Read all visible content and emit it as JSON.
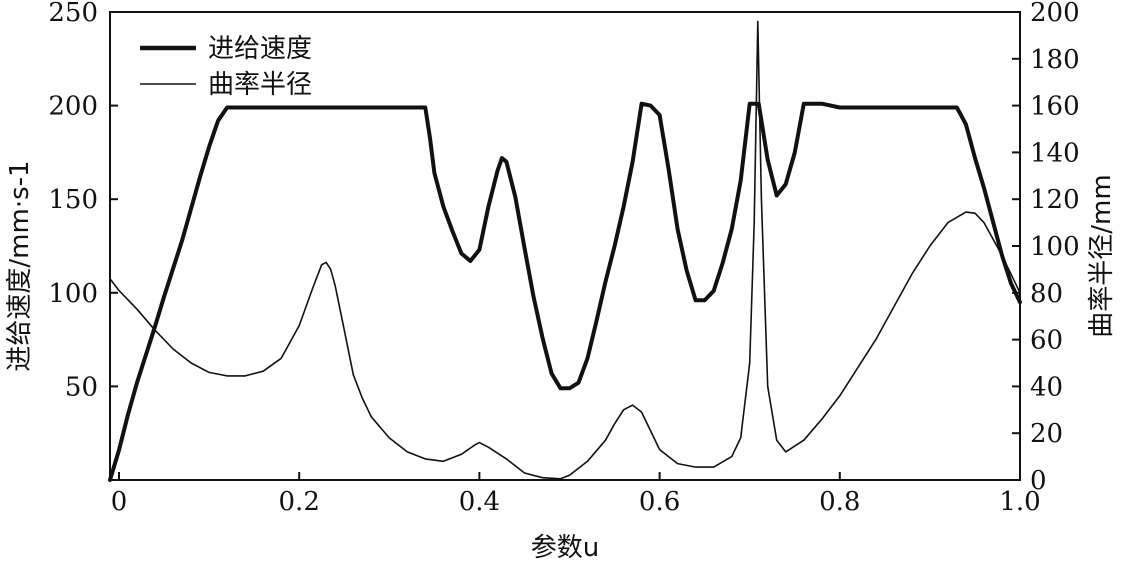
{
  "chart_data": {
    "type": "line",
    "xlabel": "参数u",
    "ylabel": "进给速度/mm·s-1",
    "y2label": "曲率半径/mm",
    "xlim": [
      -0.01,
      1.0
    ],
    "ylim": [
      0,
      250
    ],
    "y2lim": [
      0,
      200
    ],
    "x_ticks": [
      0,
      0.2,
      0.4,
      0.6,
      0.8,
      1.0
    ],
    "x_tick_labels": [
      "0",
      "0.2",
      "0.4",
      "0.6",
      "0.8",
      "1.0"
    ],
    "y_ticks": [
      50,
      100,
      150,
      200,
      250
    ],
    "y_tick_labels": [
      "50",
      "100",
      "150",
      "200",
      "250"
    ],
    "y2_ticks": [
      0,
      20,
      40,
      60,
      80,
      100,
      120,
      140,
      160,
      180,
      200
    ],
    "y2_tick_labels": [
      "0",
      "20",
      "40",
      "60",
      "80",
      "100",
      "120",
      "140",
      "160",
      "180",
      "200"
    ],
    "grid": false,
    "legend_position": "top-left",
    "series": [
      {
        "name": "进给速度",
        "axis": "left",
        "line_style": "thick",
        "color": "#111111",
        "points": [
          [
            -0.01,
            0
          ],
          [
            0.0,
            16
          ],
          [
            0.01,
            35
          ],
          [
            0.02,
            52
          ],
          [
            0.03,
            67
          ],
          [
            0.04,
            82
          ],
          [
            0.05,
            98
          ],
          [
            0.06,
            113
          ],
          [
            0.07,
            128
          ],
          [
            0.08,
            145
          ],
          [
            0.09,
            162
          ],
          [
            0.1,
            178
          ],
          [
            0.11,
            192
          ],
          [
            0.12,
            199
          ],
          [
            0.2,
            199
          ],
          [
            0.34,
            199
          ],
          [
            0.345,
            183
          ],
          [
            0.35,
            164
          ],
          [
            0.36,
            146
          ],
          [
            0.37,
            133
          ],
          [
            0.38,
            121
          ],
          [
            0.39,
            117
          ],
          [
            0.4,
            123
          ],
          [
            0.41,
            146
          ],
          [
            0.42,
            165
          ],
          [
            0.425,
            172
          ],
          [
            0.43,
            170
          ],
          [
            0.44,
            151
          ],
          [
            0.45,
            124
          ],
          [
            0.46,
            98
          ],
          [
            0.47,
            76
          ],
          [
            0.48,
            57
          ],
          [
            0.49,
            49
          ],
          [
            0.5,
            49
          ],
          [
            0.51,
            52
          ],
          [
            0.52,
            65
          ],
          [
            0.53,
            85
          ],
          [
            0.54,
            106
          ],
          [
            0.55,
            125
          ],
          [
            0.56,
            146
          ],
          [
            0.57,
            170
          ],
          [
            0.58,
            201
          ],
          [
            0.59,
            200
          ],
          [
            0.6,
            195
          ],
          [
            0.61,
            166
          ],
          [
            0.62,
            134
          ],
          [
            0.63,
            112
          ],
          [
            0.64,
            96
          ],
          [
            0.65,
            96
          ],
          [
            0.66,
            101
          ],
          [
            0.67,
            116
          ],
          [
            0.68,
            134
          ],
          [
            0.69,
            160
          ],
          [
            0.7,
            201
          ],
          [
            0.71,
            201
          ],
          [
            0.72,
            171
          ],
          [
            0.73,
            152
          ],
          [
            0.74,
            158
          ],
          [
            0.75,
            175
          ],
          [
            0.76,
            201
          ],
          [
            0.78,
            201
          ],
          [
            0.8,
            199
          ],
          [
            0.93,
            199
          ],
          [
            0.94,
            190
          ],
          [
            0.95,
            172
          ],
          [
            0.96,
            156
          ],
          [
            0.97,
            138
          ],
          [
            0.98,
            120
          ],
          [
            0.99,
            105
          ],
          [
            1.0,
            95
          ]
        ]
      },
      {
        "name": "曲率半径",
        "axis": "right",
        "line_style": "thin",
        "color": "#111111",
        "points": [
          [
            -0.01,
            86
          ],
          [
            0.0,
            81
          ],
          [
            0.02,
            73
          ],
          [
            0.04,
            64
          ],
          [
            0.06,
            56
          ],
          [
            0.08,
            50
          ],
          [
            0.1,
            46
          ],
          [
            0.12,
            44.5
          ],
          [
            0.14,
            44.5
          ],
          [
            0.16,
            46.5
          ],
          [
            0.18,
            52
          ],
          [
            0.2,
            66
          ],
          [
            0.215,
            82
          ],
          [
            0.225,
            92
          ],
          [
            0.23,
            93
          ],
          [
            0.235,
            90
          ],
          [
            0.24,
            83
          ],
          [
            0.25,
            64
          ],
          [
            0.26,
            45
          ],
          [
            0.27,
            35
          ],
          [
            0.28,
            27
          ],
          [
            0.3,
            18
          ],
          [
            0.32,
            12
          ],
          [
            0.34,
            9
          ],
          [
            0.36,
            8
          ],
          [
            0.38,
            11
          ],
          [
            0.395,
            15
          ],
          [
            0.4,
            16
          ],
          [
            0.41,
            14
          ],
          [
            0.43,
            9
          ],
          [
            0.45,
            3
          ],
          [
            0.47,
            1
          ],
          [
            0.49,
            0.5
          ],
          [
            0.5,
            2
          ],
          [
            0.52,
            8
          ],
          [
            0.54,
            17
          ],
          [
            0.55,
            24
          ],
          [
            0.56,
            30
          ],
          [
            0.57,
            32
          ],
          [
            0.58,
            29
          ],
          [
            0.59,
            21
          ],
          [
            0.6,
            13
          ],
          [
            0.62,
            7
          ],
          [
            0.64,
            5.5
          ],
          [
            0.66,
            5.5
          ],
          [
            0.68,
            10
          ],
          [
            0.69,
            18
          ],
          [
            0.7,
            50
          ],
          [
            0.705,
            110
          ],
          [
            0.709,
            196
          ],
          [
            0.713,
            120
          ],
          [
            0.72,
            40
          ],
          [
            0.73,
            17
          ],
          [
            0.74,
            12
          ],
          [
            0.76,
            17
          ],
          [
            0.78,
            26
          ],
          [
            0.8,
            36
          ],
          [
            0.82,
            48
          ],
          [
            0.84,
            60
          ],
          [
            0.86,
            74
          ],
          [
            0.88,
            88
          ],
          [
            0.9,
            100
          ],
          [
            0.92,
            110
          ],
          [
            0.94,
            114.5
          ],
          [
            0.95,
            114
          ],
          [
            0.96,
            110
          ],
          [
            0.98,
            96
          ],
          [
            1.0,
            80
          ]
        ]
      }
    ]
  }
}
